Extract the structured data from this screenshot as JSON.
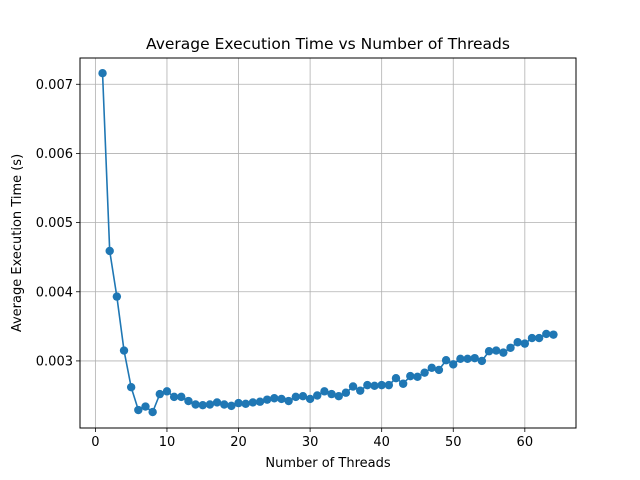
{
  "chart_data": {
    "type": "line",
    "title": "Average Execution Time vs Number of Threads",
    "xlabel": "Number of Threads",
    "ylabel": "Average Execution Time (s)",
    "xlim": [
      -2.15,
      67.15
    ],
    "ylim": [
      0.00203,
      0.00738
    ],
    "xticks": [
      0,
      10,
      20,
      30,
      40,
      50,
      60
    ],
    "xtick_labels": [
      "0",
      "10",
      "20",
      "30",
      "40",
      "50",
      "60"
    ],
    "yticks": [
      0.003,
      0.004,
      0.005,
      0.006,
      0.007
    ],
    "ytick_labels": [
      "0.003",
      "0.004",
      "0.005",
      "0.006",
      "0.007"
    ],
    "grid": true,
    "legend": null,
    "colors": {
      "series": "#1f77b4",
      "grid": "#b0b0b0",
      "axes": "#000000"
    },
    "series": [
      {
        "marker": "circle",
        "x": [
          1,
          2,
          3,
          4,
          5,
          6,
          7,
          8,
          9,
          10,
          11,
          12,
          13,
          14,
          15,
          16,
          17,
          18,
          19,
          20,
          21,
          22,
          23,
          24,
          25,
          26,
          27,
          28,
          29,
          30,
          31,
          32,
          33,
          34,
          35,
          36,
          37,
          38,
          39,
          40,
          41,
          42,
          43,
          44,
          45,
          46,
          47,
          48,
          49,
          50,
          51,
          52,
          53,
          54,
          55,
          56,
          57,
          58,
          59,
          60,
          61,
          62,
          63,
          64
        ],
        "y": [
          0.00716,
          0.00459,
          0.00393,
          0.00315,
          0.00262,
          0.00229,
          0.00234,
          0.00226,
          0.00252,
          0.00256,
          0.00248,
          0.00248,
          0.00242,
          0.00237,
          0.00236,
          0.00237,
          0.0024,
          0.00237,
          0.00235,
          0.00239,
          0.00238,
          0.0024,
          0.00241,
          0.00244,
          0.00246,
          0.00245,
          0.00242,
          0.00248,
          0.00249,
          0.00245,
          0.0025,
          0.00256,
          0.00252,
          0.00249,
          0.00254,
          0.00263,
          0.00257,
          0.00265,
          0.00264,
          0.00265,
          0.00265,
          0.00275,
          0.00267,
          0.00278,
          0.00277,
          0.00283,
          0.0029,
          0.00287,
          0.00301,
          0.00295,
          0.00303,
          0.00303,
          0.00304,
          0.003,
          0.00314,
          0.00315,
          0.00312,
          0.00319,
          0.00327,
          0.00325,
          0.00333,
          0.00333,
          0.00339,
          0.00338
        ]
      }
    ]
  }
}
